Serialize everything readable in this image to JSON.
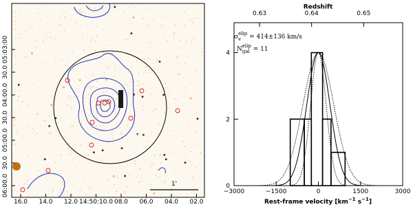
{
  "chart_data": [
    {
      "type": "image",
      "xticklabels": [
        "16.0",
        "14.0",
        "12.0",
        "14:50:10.0",
        "08.0",
        "06.0",
        "04.0",
        "02.0"
      ],
      "yticklabels": [
        "06:00.0",
        "30.0",
        "05:00.0",
        "30.0",
        "04:00.0",
        "30.0",
        "05:03:00"
      ],
      "scale_bar_label": "1'"
    },
    {
      "type": "histogram",
      "top_axis_label": "Redshift",
      "xlabel_parts": [
        "Rest-frame velocity [km",
        "−1",
        " s",
        "−1",
        "]"
      ],
      "annotations": {
        "sigma_symbol": "σ",
        "sigma_sub": "v",
        "sigma_sup": "elip",
        "sigma_text": " = 414±136 km/s",
        "n_symbol": "N",
        "n_sub": "gal",
        "n_sup": "elip",
        "n_text": " = 11"
      },
      "bins": [
        -1000,
        -500,
        -250,
        150,
        450,
        950
      ],
      "counts": [
        2,
        2,
        4,
        2,
        1
      ],
      "curves": [
        {
          "style": "solid",
          "mean": 0,
          "sigma": 414,
          "peak": 4
        },
        {
          "style": "dotted",
          "mean": 0,
          "sigma": 278,
          "peak": 4
        },
        {
          "style": "dotted",
          "mean": 0,
          "sigma": 550,
          "peak": 4
        }
      ],
      "xlim": [
        -3000,
        3000
      ],
      "xticks": [
        {
          "value": -3000,
          "label": "−3000"
        },
        {
          "value": -1500,
          "label": "−1500"
        },
        0,
        1500,
        3000
      ],
      "ylim": [
        0,
        4.9
      ],
      "yticks": [
        0,
        2,
        4
      ],
      "x2lim": [
        0.6251,
        0.6575
      ],
      "x2ticks": [
        0.63,
        0.64,
        0.65
      ],
      "color": "#000000"
    }
  ]
}
